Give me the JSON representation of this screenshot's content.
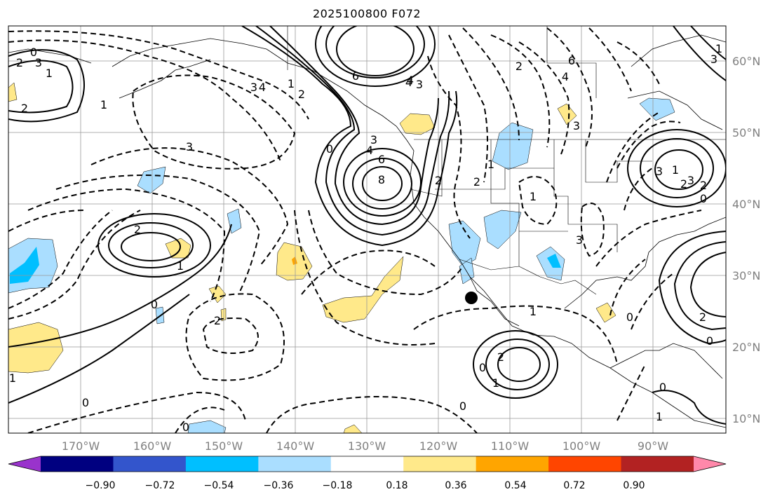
{
  "title": "2025100800 F072",
  "axes": {
    "lon_labels": [
      "170°W",
      "160°W",
      "150°W",
      "140°W",
      "130°W",
      "120°W",
      "110°W",
      "100°W",
      "90°W"
    ],
    "lat_labels": [
      "60°N",
      "50°N",
      "40°N",
      "30°N",
      "20°N",
      "10°N"
    ]
  },
  "colorbar": {
    "colors": [
      "#9933cc",
      "#000080",
      "#3355cc",
      "#00bfff",
      "#aadeff",
      "#ffffff",
      "#ffe98a",
      "#ffa500",
      "#ff4500",
      "#b22222",
      "#ff88aa"
    ],
    "ticks": [
      "−0.90",
      "−0.72",
      "−0.54",
      "−0.36",
      "−0.18",
      "0.18",
      "0.36",
      "0.54",
      "0.72",
      "0.90"
    ]
  },
  "contour_labels": {
    "solid": [
      "6",
      "4",
      "3",
      "8",
      "6",
      "4",
      "3",
      "2",
      "1",
      "0",
      "2",
      "1",
      "0",
      "2",
      "1",
      "0",
      "3",
      "2",
      "0",
      "2",
      "1",
      "0",
      "1"
    ],
    "dashed": [
      "0",
      "3",
      "1",
      "2",
      "3",
      "4",
      "2",
      "1",
      "4",
      "3",
      "1",
      "3",
      "2",
      "1",
      "0",
      "3",
      "2",
      "1",
      "0",
      "2",
      "0",
      "0",
      "6",
      "3",
      "2",
      "1",
      "3",
      "4",
      "2",
      "1",
      "0"
    ]
  },
  "colors": {
    "positive_fill": "#ffe98a",
    "positive_strong": "#ffa500",
    "negative_fill": "#aadeff",
    "negative_strong": "#00bfff",
    "grid": "#999999",
    "marker": "#000000"
  },
  "legend_marker": "storm-center-marker"
}
